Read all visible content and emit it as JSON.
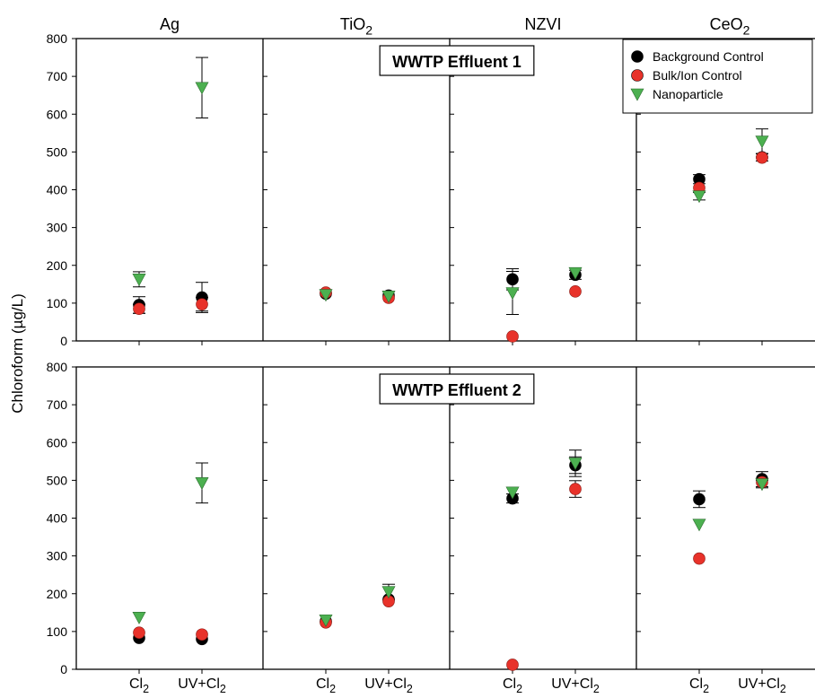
{
  "chart_data": {
    "type": "scatter",
    "ylabel": "Chloroform (µg/L)",
    "ylim": [
      0,
      800
    ],
    "yticks": [
      0,
      100,
      200,
      300,
      400,
      500,
      600,
      700,
      800
    ],
    "grid": false,
    "legend_position": "top-right",
    "columns": [
      {
        "base": "Ag",
        "sub": ""
      },
      {
        "base": "TiO",
        "sub": "2"
      },
      {
        "base": "NZVI",
        "sub": ""
      },
      {
        "base": "CeO",
        "sub": "2"
      }
    ],
    "xcategories": [
      {
        "base": "Cl",
        "sub": "2"
      },
      {
        "base": "UV+Cl",
        "sub": "2"
      }
    ],
    "rows": [
      {
        "title": "WWTP Effluent 1"
      },
      {
        "title": "WWTP Effluent 2"
      }
    ],
    "series": [
      {
        "name": "Background Control",
        "marker": "circle",
        "color": "#000000"
      },
      {
        "name": "Bulk/Ion Control",
        "marker": "circle",
        "color": "#e8322a"
      },
      {
        "name": "Nanoparticle",
        "marker": "triangle-down",
        "color": "#4cb050"
      }
    ],
    "panels": [
      {
        "row": 0,
        "col": 0,
        "points": [
          {
            "s": 0,
            "cat": 0,
            "y": 95,
            "err": 22
          },
          {
            "s": 1,
            "cat": 0,
            "y": 85,
            "err": 12
          },
          {
            "s": 2,
            "cat": 0,
            "y": 163,
            "err": 20
          },
          {
            "s": 0,
            "cat": 1,
            "y": 115,
            "err": 40
          },
          {
            "s": 1,
            "cat": 1,
            "y": 97,
            "err": 18
          },
          {
            "s": 2,
            "cat": 1,
            "y": 670,
            "err": 80
          }
        ]
      },
      {
        "row": 0,
        "col": 1,
        "points": [
          {
            "s": 0,
            "cat": 0,
            "y": 125,
            "err": 0
          },
          {
            "s": 1,
            "cat": 0,
            "y": 128,
            "err": 0
          },
          {
            "s": 2,
            "cat": 0,
            "y": 122,
            "err": 0
          },
          {
            "s": 0,
            "cat": 1,
            "y": 120,
            "err": 0
          },
          {
            "s": 1,
            "cat": 1,
            "y": 114,
            "err": 0
          },
          {
            "s": 2,
            "cat": 1,
            "y": 118,
            "err": 0
          }
        ]
      },
      {
        "row": 0,
        "col": 2,
        "points": [
          {
            "s": 0,
            "cat": 0,
            "y": 163,
            "err": 28
          },
          {
            "s": 1,
            "cat": 0,
            "y": 12,
            "err": 0
          },
          {
            "s": 2,
            "cat": 0,
            "y": 127,
            "err": 57
          },
          {
            "s": 0,
            "cat": 1,
            "y": 175,
            "err": 12
          },
          {
            "s": 1,
            "cat": 1,
            "y": 131,
            "err": 0
          },
          {
            "s": 2,
            "cat": 1,
            "y": 180,
            "err": 0
          }
        ]
      },
      {
        "row": 0,
        "col": 3,
        "points": [
          {
            "s": 0,
            "cat": 0,
            "y": 428,
            "err": 12
          },
          {
            "s": 1,
            "cat": 0,
            "y": 405,
            "err": 0
          },
          {
            "s": 2,
            "cat": 0,
            "y": 383,
            "err": 10
          },
          {
            "s": 0,
            "cat": 1,
            "y": 486,
            "err": 10
          },
          {
            "s": 1,
            "cat": 1,
            "y": 485,
            "err": 0
          },
          {
            "s": 2,
            "cat": 1,
            "y": 528,
            "err": 33
          }
        ]
      },
      {
        "row": 1,
        "col": 0,
        "points": [
          {
            "s": 0,
            "cat": 0,
            "y": 83,
            "err": 0
          },
          {
            "s": 1,
            "cat": 0,
            "y": 97,
            "err": 0
          },
          {
            "s": 2,
            "cat": 0,
            "y": 137,
            "err": 0
          },
          {
            "s": 0,
            "cat": 1,
            "y": 80,
            "err": 0
          },
          {
            "s": 1,
            "cat": 1,
            "y": 92,
            "err": 0
          },
          {
            "s": 2,
            "cat": 1,
            "y": 493,
            "err": 53
          }
        ]
      },
      {
        "row": 1,
        "col": 1,
        "points": [
          {
            "s": 0,
            "cat": 0,
            "y": 127,
            "err": 0
          },
          {
            "s": 1,
            "cat": 0,
            "y": 124,
            "err": 0
          },
          {
            "s": 2,
            "cat": 0,
            "y": 130,
            "err": 0
          },
          {
            "s": 0,
            "cat": 1,
            "y": 185,
            "err": 0
          },
          {
            "s": 1,
            "cat": 1,
            "y": 180,
            "err": 0
          },
          {
            "s": 2,
            "cat": 1,
            "y": 205,
            "err": 20
          }
        ]
      },
      {
        "row": 1,
        "col": 2,
        "points": [
          {
            "s": 0,
            "cat": 0,
            "y": 452,
            "err": 12
          },
          {
            "s": 1,
            "cat": 0,
            "y": 12,
            "err": 0
          },
          {
            "s": 2,
            "cat": 0,
            "y": 468,
            "err": 0
          },
          {
            "s": 0,
            "cat": 1,
            "y": 540,
            "err": 22
          },
          {
            "s": 1,
            "cat": 1,
            "y": 477,
            "err": 22
          },
          {
            "s": 2,
            "cat": 1,
            "y": 545,
            "err": 35
          }
        ]
      },
      {
        "row": 1,
        "col": 3,
        "points": [
          {
            "s": 0,
            "cat": 0,
            "y": 450,
            "err": 22
          },
          {
            "s": 1,
            "cat": 0,
            "y": 293,
            "err": 0
          },
          {
            "s": 2,
            "cat": 0,
            "y": 383,
            "err": 0
          },
          {
            "s": 0,
            "cat": 1,
            "y": 503,
            "err": 20
          },
          {
            "s": 1,
            "cat": 1,
            "y": 495,
            "err": 0
          },
          {
            "s": 2,
            "cat": 1,
            "y": 490,
            "err": 10
          }
        ]
      }
    ]
  }
}
